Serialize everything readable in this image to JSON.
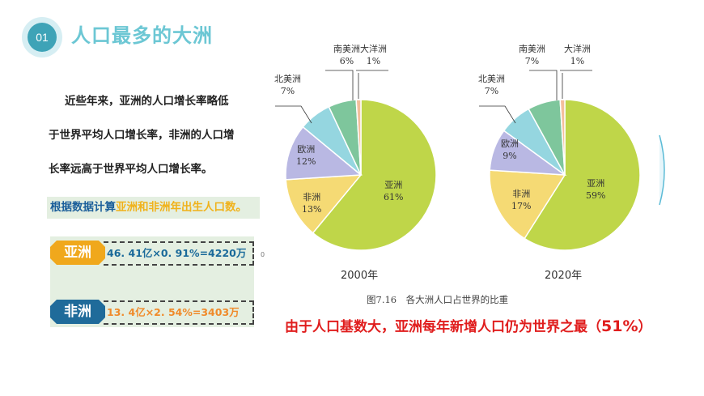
{
  "header": {
    "number": "01",
    "title": "人口最多的大洲"
  },
  "intro": {
    "lines": [
      "近些年来，亚洲的人口增长率略低",
      "于世界平均人口增长率，非洲的人口增",
      "长率远高于世界平均人口增长率。"
    ]
  },
  "task": {
    "prefix": "根据数据计算",
    "highlight": "亚洲和非洲年出生人口数。"
  },
  "calculations": [
    {
      "label": "亚洲",
      "formula": "46. 41亿×0. 91%=4220万",
      "label_color": "#f0a81c",
      "text_color": "#1a6a9a"
    },
    {
      "label": "非洲",
      "formula": "13. 4亿×2. 54%=3403万",
      "label_color": "#1f6b9a",
      "text_color": "#f08a2a"
    }
  ],
  "figure": {
    "caption": "图7.16　各大洲人口占世界的比重",
    "year_labels": [
      "2000年",
      "2020年"
    ]
  },
  "conclusion": {
    "text": "由于人口基数大，亚洲每年新增人口仍为世界之最（",
    "value": "51%",
    "close": "）"
  },
  "misc": {
    "tiny_mark": "0"
  },
  "colors": {
    "asia": "#bfd649",
    "africa": "#f5da74",
    "europe": "#b9b8e3",
    "north_america": "#95d6e0",
    "south_america": "#7ec69c",
    "oceania": "#f4bf9c",
    "title": "#6cc7d4",
    "conclusion": "#e01d1d"
  },
  "chart_data": [
    {
      "type": "pie",
      "title": "2000年",
      "categories": [
        "亚洲",
        "非洲",
        "欧洲",
        "北美洲",
        "南美洲",
        "大洋洲"
      ],
      "values": [
        61,
        13,
        12,
        7,
        6,
        1
      ],
      "labels": [
        "亚洲 61%",
        "非洲 13%",
        "欧洲 12%",
        "北美洲 7%",
        "南美洲 6%",
        "大洋洲 1%"
      ]
    },
    {
      "type": "pie",
      "title": "2020年",
      "categories": [
        "亚洲",
        "非洲",
        "欧洲",
        "北美洲",
        "南美洲",
        "大洋洲"
      ],
      "values": [
        59,
        17,
        9,
        7,
        7,
        1
      ],
      "labels": [
        "亚洲 59%",
        "非洲 17%",
        "欧洲 9%",
        "北美洲 7%",
        "南美洲 7%",
        "大洋洲 1%"
      ]
    }
  ]
}
